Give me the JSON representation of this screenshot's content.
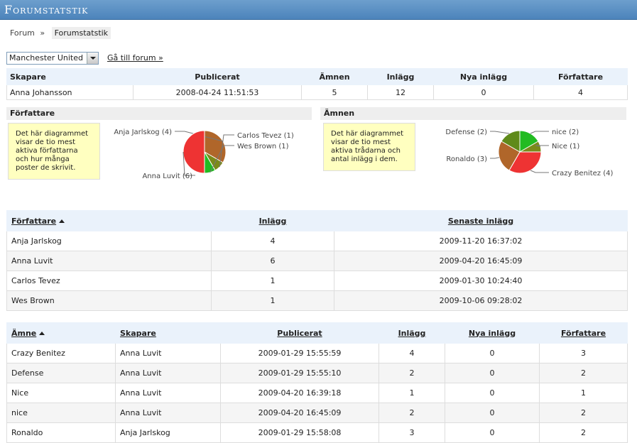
{
  "title": "Forumstatstik",
  "breadcrumb": {
    "root": "Forum",
    "sep": "»",
    "current": "Forumstatstik"
  },
  "forum_select": {
    "value": "Manchester United"
  },
  "go_link": "Gå till forum »",
  "summary": {
    "headers": [
      "Skapare",
      "Publicerat",
      "Ämnen",
      "Inlägg",
      "Nya inlägg",
      "Författare"
    ],
    "row": [
      "Anna Johansson",
      "2008-04-24 11:51:53",
      "5",
      "12",
      "0",
      "4"
    ]
  },
  "authors_section": {
    "title": "Författare",
    "note": "Det här diagrammet visar de tio mest aktiva författarna och hur många poster de skrivit.",
    "chart_data": {
      "type": "pie",
      "slices": [
        {
          "label": "Anja Jarlskog (4)",
          "value": 4,
          "color": "#b0662a"
        },
        {
          "label": "Carlos Tevez (1)",
          "value": 1,
          "color": "#7a8a1a"
        },
        {
          "label": "Wes Brown (1)",
          "value": 1,
          "color": "#22bb22"
        },
        {
          "label": "Anna Luvit (6)",
          "value": 6,
          "color": "#ee3333"
        }
      ]
    }
  },
  "topics_section": {
    "title": "Ämnen",
    "note": "Det här diagrammet visar de tio mest aktiva trådarna och antal inlägg i dem.",
    "chart_data": {
      "type": "pie",
      "slices": [
        {
          "label": "nice (2)",
          "value": 2,
          "color": "#22bb22"
        },
        {
          "label": "Nice (1)",
          "value": 1,
          "color": "#7a8a1a"
        },
        {
          "label": "Crazy Benitez (4)",
          "value": 4,
          "color": "#ee3333"
        },
        {
          "label": "Ronaldo (3)",
          "value": 3,
          "color": "#b0662a"
        },
        {
          "label": "Defense (2)",
          "value": 2,
          "color": "#5f8a1a"
        }
      ]
    }
  },
  "authors_table": {
    "headers": [
      "Författare",
      "Inlägg",
      "Senaste inlägg"
    ],
    "rows": [
      [
        "Anja Jarlskog",
        "4",
        "2009-11-20 16:37:02"
      ],
      [
        "Anna Luvit",
        "6",
        "2009-04-20 16:45:09"
      ],
      [
        "Carlos Tevez",
        "1",
        "2009-01-30 10:24:40"
      ],
      [
        "Wes Brown",
        "1",
        "2009-10-06 09:28:02"
      ]
    ]
  },
  "topics_table": {
    "headers": [
      "Ämne",
      "Skapare",
      "Publicerat",
      "Inlägg",
      "Nya inlägg",
      "Författare"
    ],
    "rows": [
      [
        "Crazy Benitez",
        "Anna Luvit",
        "2009-01-29 15:55:59",
        "4",
        "0",
        "3"
      ],
      [
        "Defense",
        "Anna Luvit",
        "2009-01-29 15:55:10",
        "2",
        "0",
        "2"
      ],
      [
        "Nice",
        "Anna Luvit",
        "2009-04-20 16:39:18",
        "1",
        "0",
        "1"
      ],
      [
        "nice",
        "Anna Luvit",
        "2009-04-20 16:45:09",
        "2",
        "0",
        "2"
      ],
      [
        "Ronaldo",
        "Anja Jarlskog",
        "2009-01-29 15:58:08",
        "3",
        "0",
        "2"
      ]
    ]
  }
}
